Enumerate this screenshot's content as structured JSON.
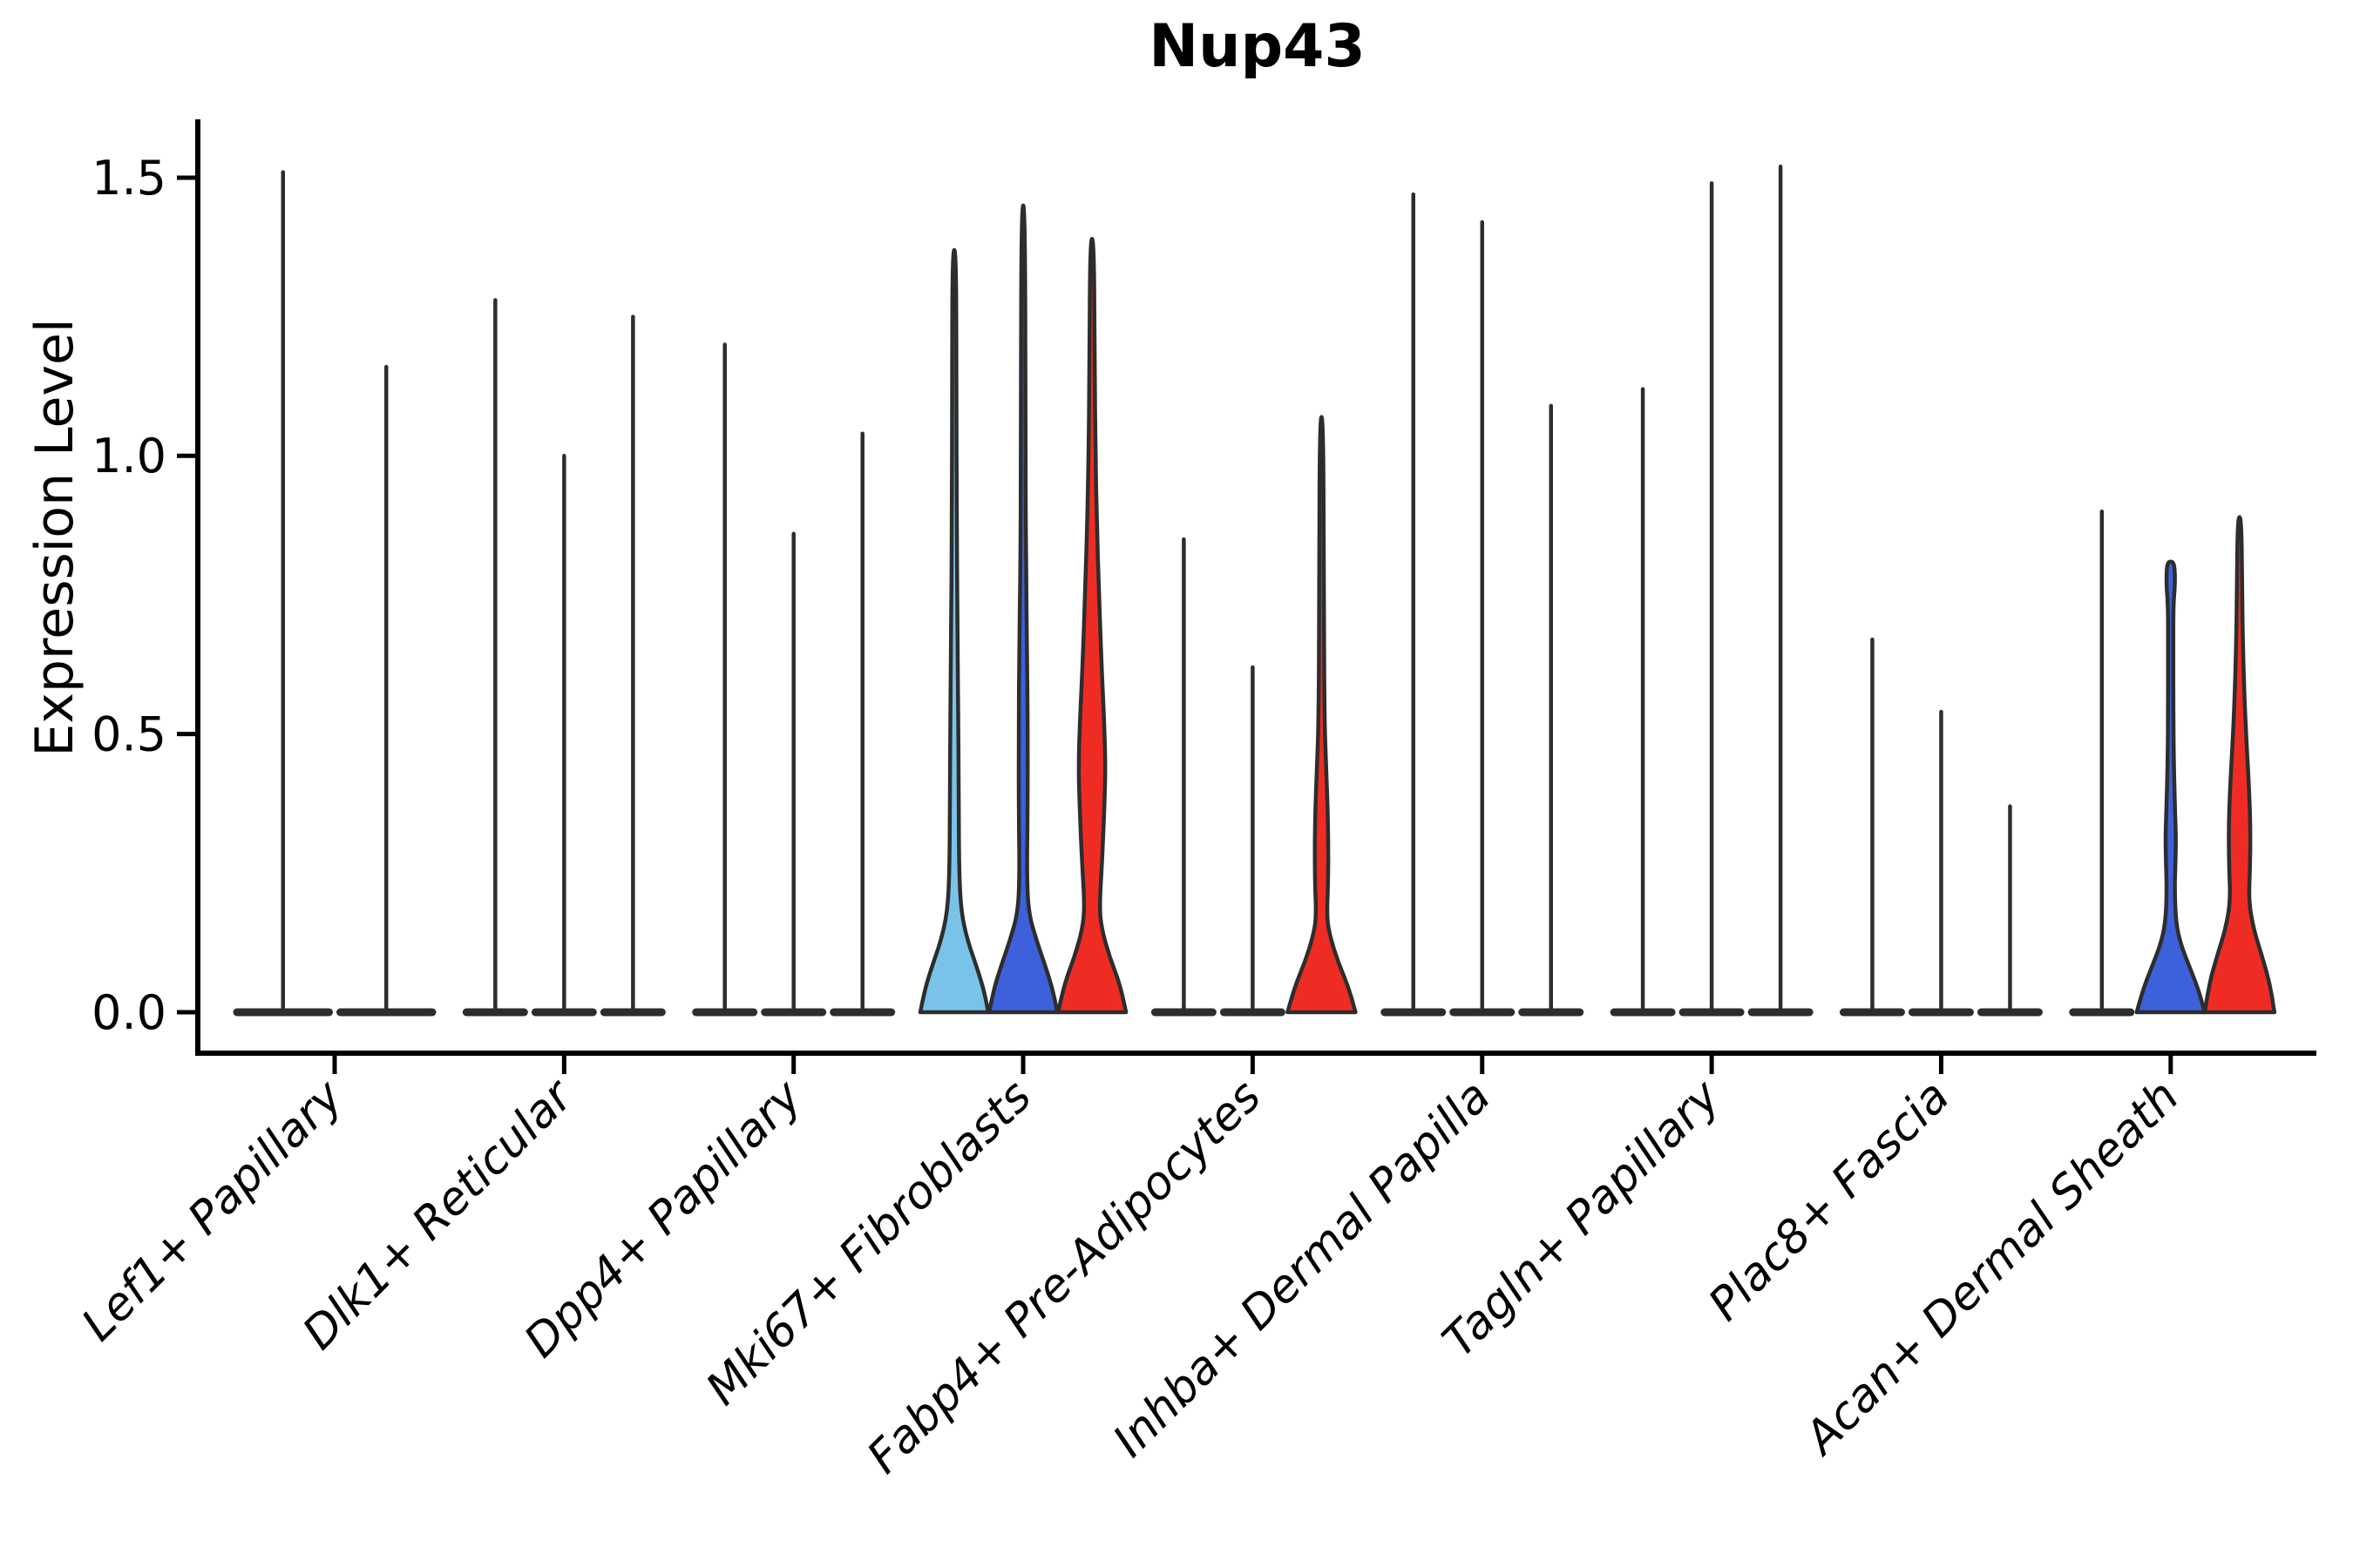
{
  "chart_data": {
    "type": "violin",
    "title": "Nup43",
    "ylabel": "Expression Level",
    "xlabel": "",
    "ylim": [
      -0.07,
      1.6
    ],
    "yticks": [
      0.0,
      0.5,
      1.0,
      1.5
    ],
    "ytick_labels": [
      "0.0",
      "0.5",
      "1.0",
      "1.5"
    ],
    "grid": false,
    "legend": "none",
    "x_tick_rotation": 45,
    "x_tick_style": "italic",
    "categories": [
      "Lef1+ Papillary",
      "Dlk1+ Reticular",
      "Dpp4+ Papillary",
      "Mki67+ Fibroblasts",
      "Fabp4+ Pre-Adipocytes",
      "Inhba+ Dermal Papilla",
      "Tagln+ Papillary",
      "Plac8+ Fascia",
      "Acan+ Dermal Sheath"
    ],
    "palette": {
      "edge": "#2d2d2d",
      "axis": "#000000",
      "skyblue": "#7AC3E8",
      "royalblue": "#3D61DB",
      "red": "#EF2C23"
    },
    "groups": [
      {
        "category": "Lef1+ Papillary",
        "violins": [
          {
            "max_expression": 1.51,
            "fill": null
          },
          {
            "max_expression": 1.16,
            "fill": null
          }
        ]
      },
      {
        "category": "Dlk1+ Reticular",
        "violins": [
          {
            "max_expression": 1.28,
            "fill": null
          },
          {
            "max_expression": 1.0,
            "fill": null
          },
          {
            "max_expression": 1.25,
            "fill": null
          }
        ]
      },
      {
        "category": "Dpp4+ Papillary",
        "violins": [
          {
            "max_expression": 1.2,
            "fill": null
          },
          {
            "max_expression": 0.86,
            "fill": null
          },
          {
            "max_expression": 1.04,
            "fill": null
          }
        ]
      },
      {
        "category": "Mki67+ Fibroblasts",
        "violins": [
          {
            "max_expression": 1.37,
            "fill": "skyblue",
            "profile": [
              [
                0,
                39
              ],
              [
                0.04,
                34
              ],
              [
                0.08,
                26
              ],
              [
                0.13,
                15
              ],
              [
                0.18,
                8
              ],
              [
                0.25,
                5.5
              ],
              [
                0.4,
                5
              ],
              [
                0.55,
                4.5
              ],
              [
                0.7,
                3.5
              ],
              [
                0.9,
                2.8
              ],
              [
                1.1,
                2.4
              ],
              [
                1.37,
                2.2
              ]
            ]
          },
          {
            "max_expression": 1.45,
            "fill": "royalblue",
            "profile": [
              [
                0,
                39
              ],
              [
                0.04,
                34
              ],
              [
                0.08,
                26
              ],
              [
                0.13,
                15
              ],
              [
                0.18,
                6
              ],
              [
                0.25,
                4.2
              ],
              [
                0.35,
                5
              ],
              [
                0.5,
                5.2
              ],
              [
                0.65,
                4.5
              ],
              [
                0.8,
                3.2
              ],
              [
                1.0,
                2.6
              ],
              [
                1.45,
                2.2
              ]
            ]
          },
          {
            "max_expression": 1.39,
            "fill": "red",
            "profile": [
              [
                0,
                39
              ],
              [
                0.05,
                32
              ],
              [
                0.1,
                20
              ],
              [
                0.15,
                11
              ],
              [
                0.19,
                8.5
              ],
              [
                0.27,
                11.5
              ],
              [
                0.36,
                14
              ],
              [
                0.44,
                15.5
              ],
              [
                0.52,
                14
              ],
              [
                0.62,
                11
              ],
              [
                0.75,
                8
              ],
              [
                0.88,
                5.5
              ],
              [
                1.0,
                4
              ],
              [
                1.15,
                3
              ],
              [
                1.39,
                2.2
              ]
            ]
          }
        ]
      },
      {
        "category": "Fabp4+ Pre-Adipocytes",
        "violins": [
          {
            "max_expression": 0.85,
            "fill": null
          },
          {
            "max_expression": 0.62,
            "fill": null
          },
          {
            "max_expression": 1.07,
            "fill": "red",
            "profile": [
              [
                0,
                39
              ],
              [
                0.045,
                31
              ],
              [
                0.09,
                19
              ],
              [
                0.135,
                10
              ],
              [
                0.17,
                6
              ],
              [
                0.23,
                7.5
              ],
              [
                0.3,
                7.8
              ],
              [
                0.37,
                7
              ],
              [
                0.45,
                5
              ],
              [
                0.52,
                3.5
              ],
              [
                0.7,
                2.6
              ],
              [
                1.07,
                2.2
              ]
            ]
          }
        ]
      },
      {
        "category": "Inhba+ Dermal Papilla",
        "violins": [
          {
            "max_expression": 1.47,
            "fill": null
          },
          {
            "max_expression": 1.42,
            "fill": null
          },
          {
            "max_expression": 1.09,
            "fill": null
          }
        ]
      },
      {
        "category": "Tagln+ Papillary",
        "violins": [
          {
            "max_expression": 1.12,
            "fill": null
          },
          {
            "max_expression": 1.49,
            "fill": null
          },
          {
            "max_expression": 1.52,
            "fill": null
          }
        ]
      },
      {
        "category": "Plac8+ Fascia",
        "violins": [
          {
            "max_expression": 0.67,
            "fill": null
          },
          {
            "max_expression": 0.54,
            "fill": null
          },
          {
            "max_expression": 0.37,
            "fill": null
          }
        ]
      },
      {
        "category": "Acan+ Dermal Sheath",
        "violins": [
          {
            "max_expression": 0.9,
            "fill": null
          },
          {
            "max_expression": 0.81,
            "fill": "royalblue",
            "profile": [
              [
                0,
                39
              ],
              [
                0.04,
                32
              ],
              [
                0.08,
                22
              ],
              [
                0.12,
                12
              ],
              [
                0.16,
                6
              ],
              [
                0.22,
                4.5
              ],
              [
                0.27,
                5.5
              ],
              [
                0.315,
                6
              ],
              [
                0.36,
                5
              ],
              [
                0.45,
                3.5
              ],
              [
                0.55,
                3
              ],
              [
                0.65,
                3
              ],
              [
                0.73,
                3
              ],
              [
                0.77,
                5
              ],
              [
                0.8,
                4.5
              ],
              [
                0.81,
                2.5
              ]
            ]
          },
          {
            "max_expression": 0.89,
            "fill": "red",
            "profile": [
              [
                0,
                40
              ],
              [
                0.05,
                35
              ],
              [
                0.1,
                26
              ],
              [
                0.15,
                16
              ],
              [
                0.2,
                10.5
              ],
              [
                0.26,
                12
              ],
              [
                0.33,
                12.5
              ],
              [
                0.4,
                11
              ],
              [
                0.47,
                8.5
              ],
              [
                0.55,
                6
              ],
              [
                0.65,
                4
              ],
              [
                0.75,
                3
              ],
              [
                0.89,
                2.2
              ]
            ]
          }
        ]
      }
    ]
  }
}
